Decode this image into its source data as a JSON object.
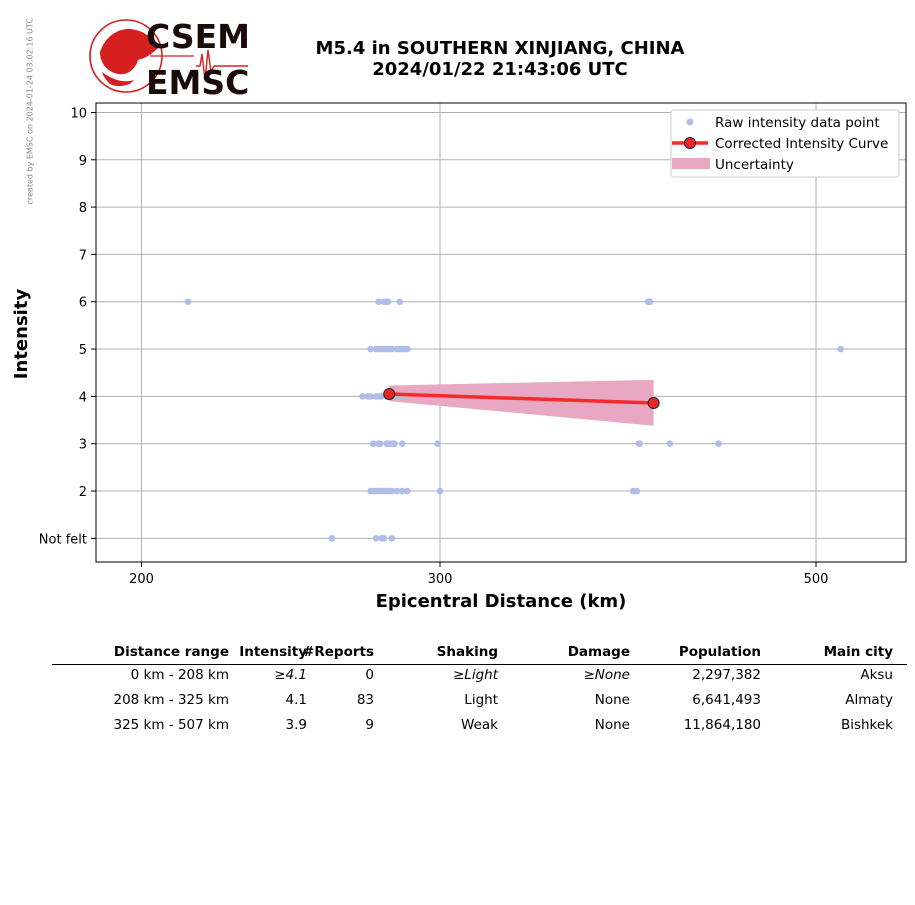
{
  "credit": "created by EMSC on 2024-01-24 03:02:16 UTC",
  "logo": {
    "line1": "CSEM",
    "line2": "EMSC"
  },
  "title": {
    "line1": "M5.4 in SOUTHERN XINJIANG, CHINA",
    "line2": "2024/01/22 21:43:06 UTC"
  },
  "chart_data": {
    "type": "scatter",
    "xlabel": "Epicentral Distance (km)",
    "ylabel": "Intensity",
    "x_scale": "log",
    "xlim": [
      188,
      565
    ],
    "ylim": [
      0.5,
      10.2
    ],
    "x_ticks": [
      200,
      300,
      500
    ],
    "y_ticks": [
      {
        "value": 1,
        "label": "Not felt"
      },
      {
        "value": 2,
        "label": "2"
      },
      {
        "value": 3,
        "label": "3"
      },
      {
        "value": 4,
        "label": "4"
      },
      {
        "value": 5,
        "label": "5"
      },
      {
        "value": 6,
        "label": "6"
      },
      {
        "value": 7,
        "label": "7"
      },
      {
        "value": 8,
        "label": "8"
      },
      {
        "value": 9,
        "label": "9"
      },
      {
        "value": 10,
        "label": "10"
      }
    ],
    "grid": true,
    "legend_position": "top-right",
    "colors": {
      "points": "#b0bde8",
      "curve": "#f52a2a",
      "curve_marker": "#e82828",
      "uncertainty": "#e8a8c4",
      "grid": "#b0b0b0"
    },
    "series": [
      {
        "name": "Raw intensity data point",
        "points": [
          [
            213,
            6
          ],
          [
            276,
            6
          ],
          [
            278,
            6
          ],
          [
            279,
            6
          ],
          [
            279.5,
            6
          ],
          [
            284,
            6
          ],
          [
            398,
            6
          ],
          [
            399,
            6
          ],
          [
            273,
            5
          ],
          [
            275,
            5
          ],
          [
            276,
            5
          ],
          [
            277,
            5
          ],
          [
            278,
            5
          ],
          [
            279,
            5
          ],
          [
            280,
            5
          ],
          [
            281,
            5
          ],
          [
            283,
            5
          ],
          [
            284,
            5
          ],
          [
            285,
            5
          ],
          [
            286,
            5
          ],
          [
            287,
            5
          ],
          [
            517,
            5
          ],
          [
            270,
            4
          ],
          [
            272,
            4
          ],
          [
            273,
            4
          ],
          [
            275,
            4
          ],
          [
            276,
            4
          ],
          [
            277,
            4
          ],
          [
            279,
            4
          ],
          [
            280,
            4
          ],
          [
            282,
            4
          ],
          [
            285,
            4
          ],
          [
            274,
            3
          ],
          [
            276,
            3
          ],
          [
            276.5,
            3
          ],
          [
            279,
            3
          ],
          [
            279.5,
            3
          ],
          [
            280,
            3
          ],
          [
            281,
            3
          ],
          [
            282,
            3
          ],
          [
            285,
            3
          ],
          [
            299,
            3
          ],
          [
            393,
            3
          ],
          [
            393.5,
            3
          ],
          [
            410,
            3
          ],
          [
            438,
            3
          ],
          [
            273,
            2
          ],
          [
            274,
            2
          ],
          [
            275,
            2
          ],
          [
            276,
            2
          ],
          [
            277,
            2
          ],
          [
            278,
            2
          ],
          [
            279,
            2
          ],
          [
            280,
            2
          ],
          [
            281,
            2
          ],
          [
            283,
            2
          ],
          [
            285,
            2
          ],
          [
            287,
            2
          ],
          [
            300,
            2
          ],
          [
            390,
            2
          ],
          [
            391,
            2
          ],
          [
            392,
            2
          ],
          [
            259,
            1
          ],
          [
            275,
            1
          ],
          [
            277,
            1
          ],
          [
            278,
            1
          ],
          [
            281,
            1
          ]
        ]
      },
      {
        "name": "Corrected Intensity Curve",
        "points": [
          [
            280,
            4.05
          ],
          [
            401,
            3.86
          ]
        ]
      },
      {
        "name": "Uncertainty",
        "band": {
          "x": [
            280,
            401
          ],
          "upper": [
            4.23,
            4.35
          ],
          "lower": [
            3.9,
            3.38
          ]
        }
      }
    ]
  },
  "table": {
    "headers": [
      "Distance range",
      "Intensity",
      "#Reports",
      "Shaking",
      "Damage",
      "Population",
      "Main city"
    ],
    "rows": [
      [
        "0 km -  208 km",
        "≥4.1",
        "0",
        "≥Light",
        "≥None",
        "2,297,382",
        "Aksu"
      ],
      [
        "208 km -  325 km",
        "4.1",
        "83",
        "Light",
        "None",
        "6,641,493",
        "Almaty"
      ],
      [
        "325 km -  507 km",
        "3.9",
        "9",
        "Weak",
        "None",
        "11,864,180",
        "Bishkek"
      ]
    ]
  }
}
